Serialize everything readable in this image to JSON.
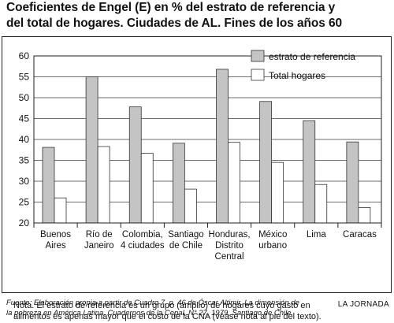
{
  "title_lines": [
    "Coeficientes de Engel (E) en % del estrato de referencia y",
    "del total de hogares. Ciudades de AL. Fines de los años 60"
  ],
  "colors": {
    "series_reference": "#c4c4c4",
    "series_total": "#ffffff",
    "bar_stroke": "#333333",
    "grid": "#6e6e6e"
  },
  "chart_data": {
    "type": "bar",
    "title": "Coeficientes de Engel (E) en % del estrato de referencia y del total de hogares. Ciudades de AL. Fines de los años 60",
    "xlabel": "",
    "ylabel": "",
    "ylim": [
      20,
      60
    ],
    "yticks": [
      20,
      25,
      30,
      35,
      40,
      45,
      50,
      55,
      60
    ],
    "grid": "horizontal",
    "legend_position": "top-right",
    "categories": [
      [
        "Buenos",
        "Aires"
      ],
      [
        "Río de",
        "Janeiro"
      ],
      [
        "Colombia,",
        "4 ciudades"
      ],
      [
        "Santiago",
        "de Chile"
      ],
      [
        "Honduras,",
        "Distrito",
        "Central"
      ],
      [
        "México",
        "urbano"
      ],
      [
        "Lima"
      ],
      [
        "Caracas"
      ]
    ],
    "series": [
      {
        "name": "estrato de referencia",
        "values": [
          38.1,
          55.0,
          47.8,
          39.1,
          56.8,
          49.1,
          44.5,
          39.4
        ]
      },
      {
        "name": "Total hogares",
        "values": [
          26.0,
          38.3,
          36.7,
          28.1,
          39.3,
          34.5,
          29.2,
          23.7
        ]
      }
    ]
  },
  "note_lines": [
    "Nota. El estrato de referencia es un grupo (amplio) de hogares cuyo gasto en",
    "alimentos es apenas mayor que el costo de la CNA (véase nota al pie del texto)."
  ],
  "source_lines": [
    "Fuente: Elaboración propia a partir de Cuadro 7, p. 46 de Óscar Altimir, La dimensión de",
    "la pobreza en América Latina, Cuadernos de la Cepal, N° 27, 1979, Santiago de Chile."
  ],
  "brand": "LA JORNADA"
}
